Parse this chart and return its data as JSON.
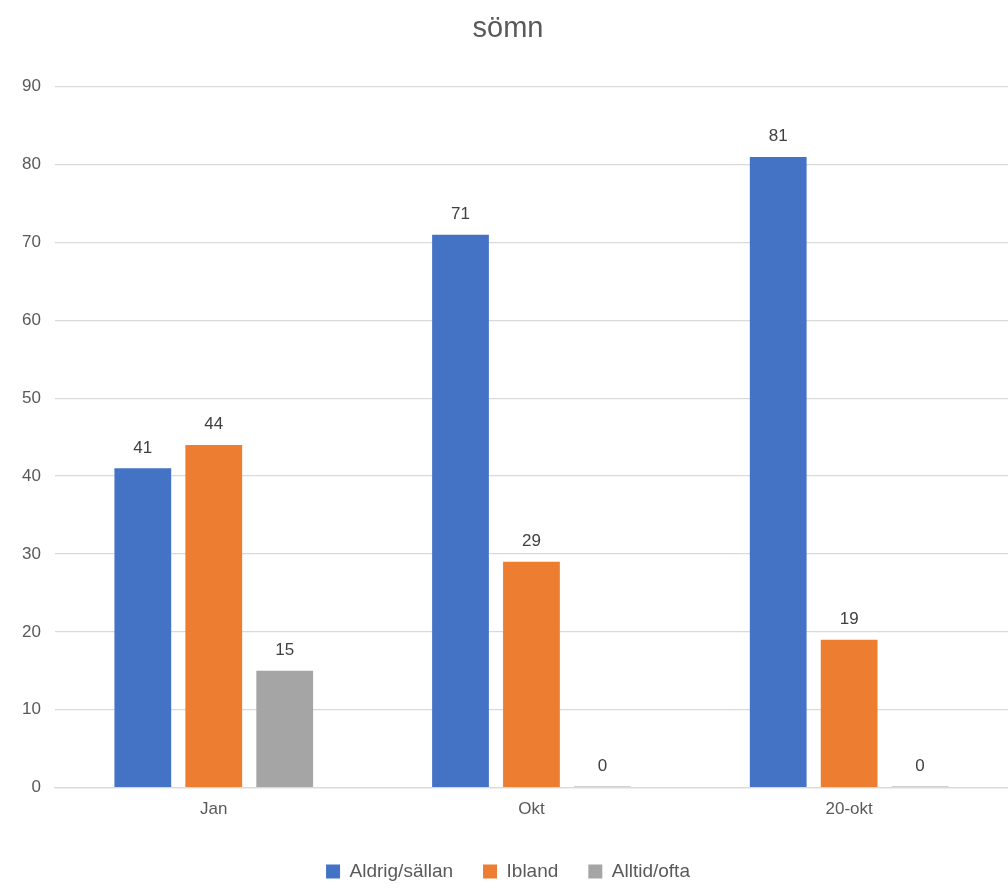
{
  "chart_data": {
    "type": "bar",
    "title": "sömn",
    "categories": [
      "Jan",
      "Okt",
      "20-okt"
    ],
    "series": [
      {
        "name": "Aldrig/sällan",
        "color": "#4472c4",
        "values": [
          41,
          71,
          81
        ]
      },
      {
        "name": "Ibland",
        "color": "#ed7d31",
        "values": [
          44,
          29,
          19
        ]
      },
      {
        "name": "Alltid/ofta",
        "color": "#a5a5a5",
        "values": [
          15,
          0,
          0
        ]
      }
    ],
    "ylim": [
      0,
      90
    ],
    "yticks": [
      0,
      10,
      20,
      30,
      40,
      50,
      60,
      70,
      80,
      90
    ],
    "grid": "y",
    "legend": "bottom",
    "data_labels": true
  }
}
